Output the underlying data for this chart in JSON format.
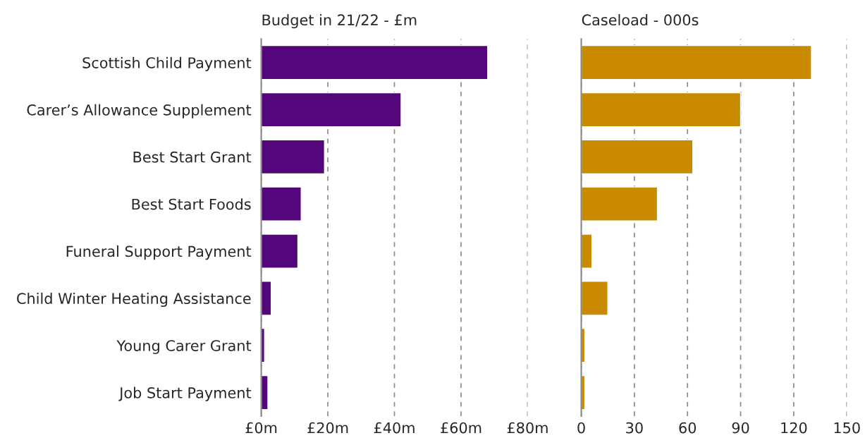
{
  "chart_data": [
    {
      "type": "bar",
      "orientation": "horizontal",
      "title": "Budget in 21/22 - £m",
      "categories": [
        "Scottish Child Payment",
        "Carer’s Allowance Supplement",
        "Best Start Grant",
        "Best Start Foods",
        "Funeral Support Payment",
        "Child Winter Heating Assistance",
        "Young Carer Grant",
        "Job Start Payment"
      ],
      "values": [
        68,
        42,
        19,
        12,
        11,
        3,
        1,
        2
      ],
      "color": "#53077a",
      "xlim": [
        0,
        80
      ],
      "xticks": [
        {
          "value": 0,
          "label": "£0m"
        },
        {
          "value": 20,
          "label": "£20m"
        },
        {
          "value": 40,
          "label": "£40m"
        },
        {
          "value": 60,
          "label": "£60m"
        },
        {
          "value": 80,
          "label": "£80m"
        }
      ],
      "grid": "x"
    },
    {
      "type": "bar",
      "orientation": "horizontal",
      "title": "Caseload - 000s",
      "categories": [
        null,
        null,
        null,
        null,
        null,
        null,
        null,
        null
      ],
      "values": [
        130,
        90,
        63,
        43,
        6,
        15,
        2,
        2
      ],
      "color": "#c98a00",
      "xlim": [
        0,
        150
      ],
      "xticks": [
        0,
        30,
        60,
        90,
        120,
        150
      ],
      "grid": "x",
      "tick_labels": "x"
    }
  ]
}
